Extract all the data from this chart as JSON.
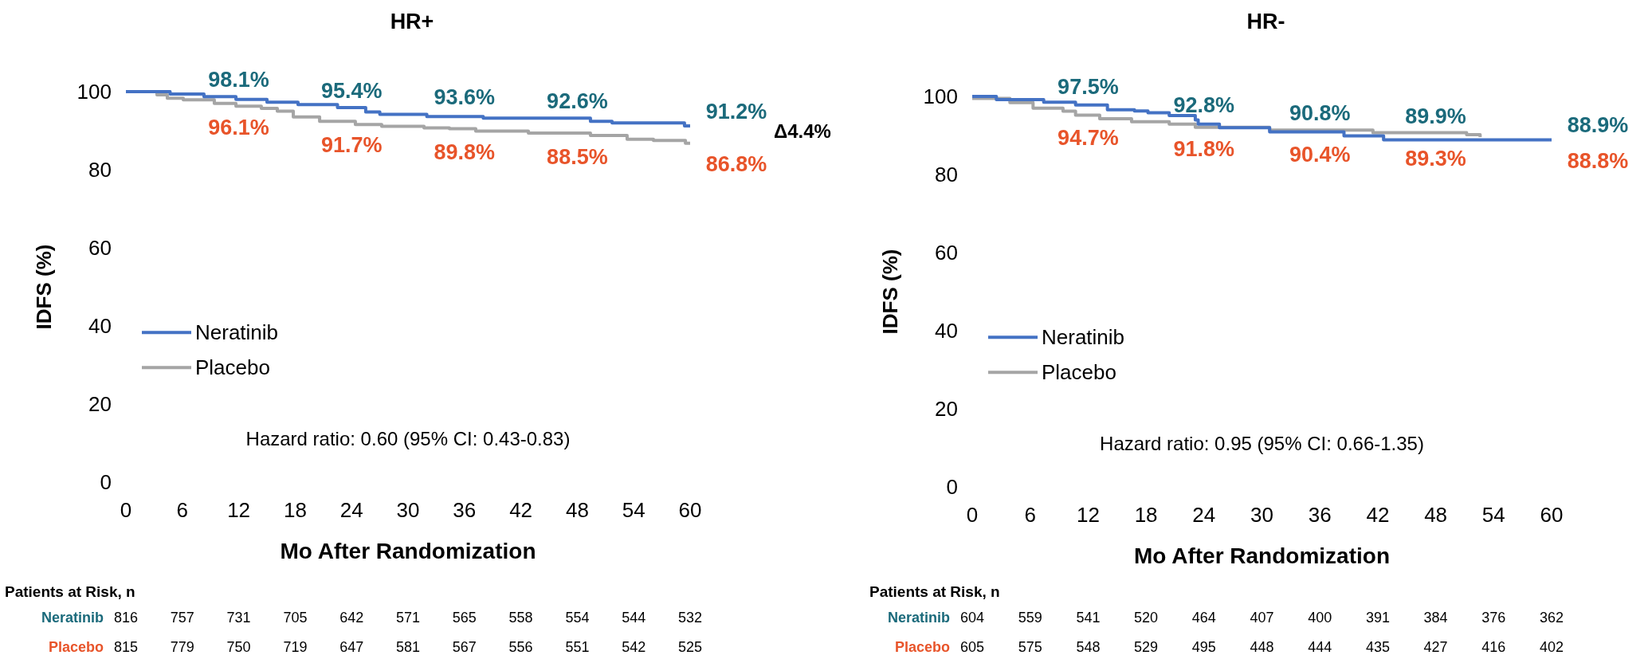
{
  "chart_data": [
    {
      "type": "step",
      "title": "HR+",
      "xlabel": "Mo After Randomization",
      "ylabel": "IDFS (%)",
      "xlim": [
        0,
        60
      ],
      "xticks": [
        0,
        6,
        12,
        18,
        24,
        30,
        36,
        42,
        48,
        54,
        60
      ],
      "ylim": [
        0,
        100
      ],
      "yticks": [
        0,
        20,
        40,
        60,
        80,
        100
      ],
      "grid": false,
      "legend": "left",
      "marker": "none",
      "series": [
        {
          "name": "Neratinib",
          "color": "#4472c4",
          "x": [
            0,
            4.7,
            8.3,
            11.7,
            15,
            18.3,
            22.5,
            25.5,
            27,
            32,
            38,
            49.4,
            51.7,
            59.4,
            60
          ],
          "values": [
            100,
            99.4,
            98.7,
            98.0,
            97.3,
            96.7,
            95.9,
            94.8,
            94.2,
            93.6,
            93.2,
            92.4,
            92.0,
            91.2,
            91.2
          ]
        },
        {
          "name": "Placebo",
          "color": "#a5a5a5",
          "x": [
            0,
            3.3,
            4.4,
            6.1,
            9.4,
            11.7,
            14.4,
            16.1,
            17.8,
            20.6,
            24.4,
            27.2,
            31.7,
            34.4,
            37.2,
            42.8,
            49.4,
            53.3,
            56.1,
            59.5,
            60
          ],
          "values": [
            100,
            99.2,
            98.3,
            97.9,
            97.0,
            96.3,
            95.7,
            95.0,
            93.5,
            92.4,
            91.6,
            91.1,
            90.7,
            90.5,
            89.9,
            89.4,
            88.8,
            87.8,
            87.5,
            86.8,
            86.8
          ]
        }
      ],
      "annotations": [
        {
          "text": "98.1%",
          "x": 12,
          "y": 98.1
        },
        {
          "text": "95.4%",
          "x": 24,
          "y": 95.4
        },
        {
          "text": "93.6%",
          "x": 36,
          "y": 93.6
        },
        {
          "text": "92.6%",
          "x": 48,
          "y": 92.6
        },
        {
          "text": "91.2%",
          "x": 60,
          "y": 91.2
        },
        {
          "text": "96.1%",
          "x": 12,
          "y": 96.1
        },
        {
          "text": "91.7%",
          "x": 24,
          "y": 91.7
        },
        {
          "text": "89.8%",
          "x": 36,
          "y": 89.8
        },
        {
          "text": "88.5%",
          "x": 48,
          "y": 88.5
        },
        {
          "text": "86.8%",
          "x": 60,
          "y": 86.8
        },
        "Δ4.4%",
        "Hazard ratio: 0.60 (95% CI: 0.43-0.83)",
        "Patients at Risk, n",
        "Neratinib",
        "816",
        "757",
        "731",
        "705",
        "642",
        "571",
        "565",
        "558",
        "554",
        "544",
        "532",
        "Placebo",
        "815",
        "779",
        "750",
        "719",
        "647",
        "581",
        "567",
        "556",
        "551",
        "542",
        "525"
      ]
    },
    {
      "type": "step",
      "title": "HR-",
      "xlabel": "Mo After Randomization",
      "ylabel": "IDFS (%)",
      "xlim": [
        0,
        60
      ],
      "xticks": [
        0,
        6,
        12,
        18,
        24,
        30,
        36,
        42,
        48,
        54,
        60
      ],
      "ylim": [
        0,
        100
      ],
      "yticks": [
        0,
        20,
        40,
        60,
        80,
        100
      ],
      "grid": false,
      "legend": "left",
      "marker": "none",
      "series": [
        {
          "name": "Neratinib",
          "color": "#4472c4",
          "x": [
            0,
            2.5,
            7.4,
            10.7,
            14,
            16.8,
            18.2,
            20.4,
            23.1,
            23.4,
            25.6,
            30.8,
            38.5,
            42.6,
            60
          ],
          "values": [
            100,
            99.2,
            98.5,
            97.8,
            96.6,
            96.3,
            95.8,
            95.1,
            94.0,
            92.9,
            92.0,
            90.9,
            89.9,
            88.9,
            88.9
          ]
        },
        {
          "name": "Placebo",
          "color": "#a5a5a5",
          "x": [
            0,
            3.9,
            6.3,
            9.4,
            10.7,
            13.2,
            16.5,
            20.4,
            23.1,
            30.8,
            41.5,
            51.2,
            52.6
          ],
          "values": [
            99.5,
            98.4,
            97.0,
            96.2,
            95.2,
            94.3,
            93.5,
            92.9,
            92.1,
            91.4,
            90.7,
            90.2,
            89.6
          ]
        }
      ],
      "annotations": [
        {
          "text": "97.5%",
          "x": 12,
          "y": 97.5
        },
        {
          "text": "92.8%",
          "x": 24,
          "y": 92.8
        },
        {
          "text": "90.8%",
          "x": 36,
          "y": 90.8
        },
        {
          "text": "89.9%",
          "x": 48,
          "y": 89.9
        },
        {
          "text": "88.9%",
          "x": 60,
          "y": 88.9
        },
        {
          "text": "94.7%",
          "x": 12,
          "y": 94.7
        },
        {
          "text": "91.8%",
          "x": 24,
          "y": 91.8
        },
        {
          "text": "90.4%",
          "x": 36,
          "y": 90.4
        },
        {
          "text": "89.3%",
          "x": 48,
          "y": 89.3
        },
        {
          "text": "88.8%",
          "x": 60,
          "y": 88.8
        },
        "Hazard ratio: 0.95 (95% CI: 0.66-1.35)",
        "Patients at Risk, n",
        "Neratinib",
        "604",
        "559",
        "541",
        "520",
        "464",
        "407",
        "400",
        "391",
        "384",
        "376",
        "362",
        "Placebo",
        "605",
        "575",
        "548",
        "529",
        "495",
        "448",
        "444",
        "435",
        "427",
        "416",
        "402"
      ]
    }
  ]
}
